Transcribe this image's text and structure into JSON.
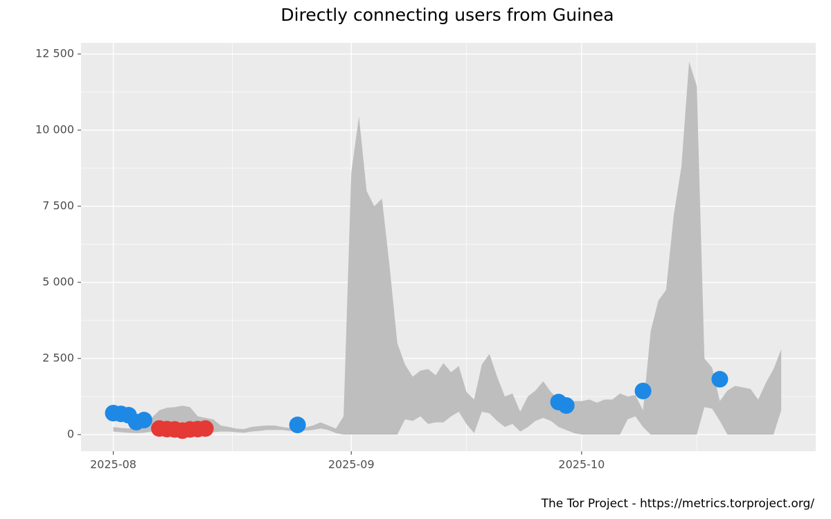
{
  "chart_data": {
    "type": "ribbon",
    "title": "Directly connecting users from Guinea",
    "caption": "The Tor Project - https://metrics.torproject.org/",
    "color": "#bebebe",
    "x": [
      0,
      1,
      2,
      3,
      4,
      5,
      6,
      7,
      8,
      9,
      10,
      11,
      12,
      13,
      14,
      15,
      16,
      17,
      18,
      19,
      20,
      21,
      22,
      23,
      24,
      25,
      26,
      27,
      28,
      29,
      30,
      31,
      32,
      33,
      34,
      35,
      36,
      37,
      38,
      39,
      40,
      41,
      42,
      43,
      44,
      45,
      46,
      47,
      48,
      49,
      50,
      51,
      52,
      53,
      54,
      55,
      56,
      57,
      58,
      59,
      60,
      61,
      62,
      63,
      64,
      65,
      66,
      67,
      68,
      69,
      70,
      71,
      72,
      73,
      74,
      75,
      76,
      77,
      78,
      79,
      80,
      81,
      82,
      83,
      84,
      85,
      86,
      87
    ],
    "lower": [
      100,
      80,
      60,
      50,
      60,
      100,
      150,
      150,
      130,
      100,
      100,
      80,
      80,
      80,
      100,
      100,
      80,
      60,
      100,
      120,
      150,
      150,
      150,
      120,
      120,
      130,
      150,
      200,
      150,
      50,
      0,
      0,
      0,
      0,
      0,
      0,
      0,
      0,
      500,
      450,
      600,
      350,
      400,
      400,
      600,
      750,
      350,
      50,
      750,
      700,
      450,
      250,
      350,
      100,
      250,
      450,
      550,
      450,
      250,
      150,
      50,
      0,
      0,
      0,
      0,
      0,
      0,
      500,
      600,
      250,
      0,
      0,
      0,
      0,
      0,
      0,
      0,
      900,
      850,
      450,
      0,
      0,
      0,
      0,
      0,
      0,
      0,
      800
    ],
    "upper": [
      250,
      220,
      200,
      250,
      350,
      550,
      800,
      880,
      900,
      950,
      900,
      600,
      550,
      500,
      300,
      250,
      200,
      180,
      250,
      280,
      300,
      300,
      250,
      220,
      220,
      230,
      300,
      400,
      300,
      200,
      600,
      8600,
      10450,
      8000,
      7500,
      7750,
      5500,
      3000,
      2300,
      1900,
      2100,
      2150,
      1950,
      2350,
      2050,
      2250,
      1400,
      1150,
      2300,
      2650,
      1900,
      1250,
      1350,
      750,
      1250,
      1450,
      1750,
      1400,
      1150,
      1200,
      1100,
      1100,
      1150,
      1050,
      1150,
      1150,
      1350,
      1250,
      1300,
      800,
      3400,
      4400,
      4750,
      7200,
      8800,
      12250,
      11450,
      2500,
      2200,
      1100,
      1450,
      1600,
      1550,
      1500,
      1150,
      1700,
      2150,
      2800
    ],
    "points": [
      {
        "color": "#1e88e5",
        "x": [
          0,
          1,
          2,
          3,
          4,
          24,
          58,
          59,
          69,
          79
        ],
        "values": [
          705,
          680,
          636,
          409,
          477,
          318,
          1068,
          955,
          1432,
          1818
        ]
      },
      {
        "color": "#e53935",
        "x": [
          6,
          7,
          8,
          9,
          10,
          11,
          12
        ],
        "values": [
          200,
          180,
          170,
          130,
          170,
          180,
          200
        ]
      }
    ],
    "xlim": [
      -4.2,
      91.5
    ],
    "xticks": [
      {
        "value": 0,
        "label": "2025-08"
      },
      {
        "value": 31,
        "label": "2025-09"
      },
      {
        "value": 61,
        "label": "2025-10"
      }
    ],
    "ylim": [
      -545,
      12864
    ],
    "yticks": [
      0,
      {
        "value": 2500,
        "label": "2 500"
      },
      {
        "value": 5000,
        "label": "5 000"
      },
      {
        "value": 7500,
        "label": "7 500"
      },
      {
        "value": 10000,
        "label": "10 000"
      },
      {
        "value": 12500,
        "label": "12 500"
      }
    ],
    "grid": true
  }
}
